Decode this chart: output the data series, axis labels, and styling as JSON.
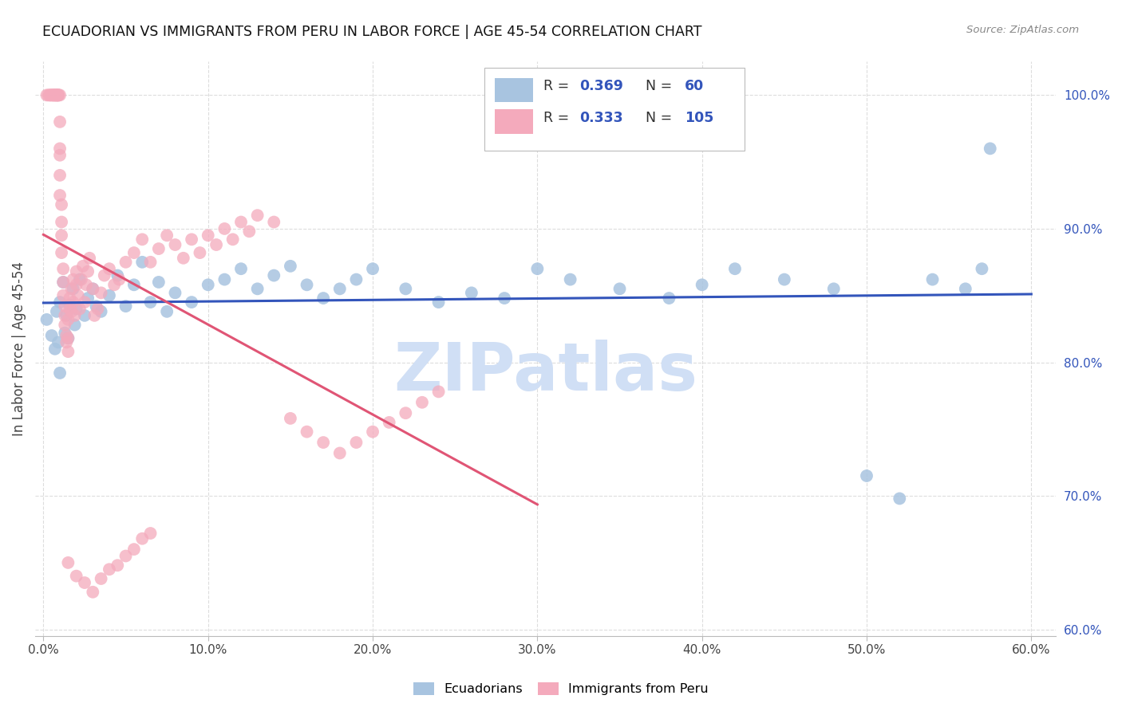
{
  "title": "ECUADORIAN VS IMMIGRANTS FROM PERU IN LABOR FORCE | AGE 45-54 CORRELATION CHART",
  "source": "Source: ZipAtlas.com",
  "ylabel": "In Labor Force | Age 45-54",
  "blue_R": 0.369,
  "blue_N": 60,
  "pink_R": 0.333,
  "pink_N": 105,
  "blue_color": "#A8C4E0",
  "pink_color": "#F4AABC",
  "blue_line_color": "#3355BB",
  "pink_line_color": "#E05575",
  "blue_label_color": "#3355BB",
  "watermark_text": "ZIPatlas",
  "watermark_color": "#D0DFF5",
  "xlim": [
    0.0,
    0.6
  ],
  "ylim": [
    0.595,
    1.025
  ],
  "x_ticks": [
    0.0,
    0.1,
    0.2,
    0.3,
    0.4,
    0.5,
    0.6
  ],
  "y_ticks": [
    0.6,
    0.7,
    0.8,
    0.9,
    1.0
  ],
  "blue_x": [
    0.002,
    0.005,
    0.007,
    0.008,
    0.009,
    0.01,
    0.01,
    0.012,
    0.013,
    0.014,
    0.015,
    0.016,
    0.018,
    0.019,
    0.02,
    0.022,
    0.025,
    0.027,
    0.03,
    0.032,
    0.035,
    0.04,
    0.045,
    0.05,
    0.055,
    0.06,
    0.065,
    0.07,
    0.075,
    0.08,
    0.09,
    0.1,
    0.11,
    0.12,
    0.13,
    0.14,
    0.15,
    0.16,
    0.17,
    0.18,
    0.19,
    0.2,
    0.22,
    0.24,
    0.26,
    0.28,
    0.3,
    0.32,
    0.35,
    0.38,
    0.4,
    0.42,
    0.45,
    0.48,
    0.5,
    0.52,
    0.54,
    0.56,
    0.57,
    0.575
  ],
  "blue_y": [
    0.832,
    0.82,
    0.81,
    0.838,
    0.815,
    0.792,
    0.845,
    0.86,
    0.822,
    0.835,
    0.818,
    0.843,
    0.855,
    0.828,
    0.84,
    0.862,
    0.835,
    0.848,
    0.855,
    0.842,
    0.838,
    0.85,
    0.865,
    0.842,
    0.858,
    0.875,
    0.845,
    0.86,
    0.838,
    0.852,
    0.845,
    0.858,
    0.862,
    0.87,
    0.855,
    0.865,
    0.872,
    0.858,
    0.848,
    0.855,
    0.862,
    0.87,
    0.855,
    0.845,
    0.852,
    0.848,
    0.87,
    0.862,
    0.855,
    0.848,
    0.858,
    0.87,
    0.862,
    0.855,
    0.715,
    0.698,
    0.862,
    0.855,
    0.87,
    0.96
  ],
  "pink_x": [
    0.002,
    0.003,
    0.004,
    0.004,
    0.005,
    0.005,
    0.006,
    0.006,
    0.006,
    0.007,
    0.007,
    0.007,
    0.008,
    0.008,
    0.008,
    0.008,
    0.009,
    0.009,
    0.009,
    0.009,
    0.01,
    0.01,
    0.01,
    0.01,
    0.01,
    0.01,
    0.011,
    0.011,
    0.011,
    0.011,
    0.012,
    0.012,
    0.012,
    0.013,
    0.013,
    0.013,
    0.014,
    0.014,
    0.015,
    0.015,
    0.015,
    0.016,
    0.016,
    0.017,
    0.017,
    0.018,
    0.018,
    0.019,
    0.02,
    0.02,
    0.021,
    0.022,
    0.023,
    0.024,
    0.025,
    0.026,
    0.027,
    0.028,
    0.03,
    0.031,
    0.033,
    0.035,
    0.037,
    0.04,
    0.043,
    0.046,
    0.05,
    0.055,
    0.06,
    0.065,
    0.07,
    0.075,
    0.08,
    0.085,
    0.09,
    0.095,
    0.1,
    0.105,
    0.11,
    0.115,
    0.12,
    0.125,
    0.13,
    0.14,
    0.15,
    0.16,
    0.17,
    0.18,
    0.19,
    0.2,
    0.21,
    0.22,
    0.23,
    0.24,
    0.015,
    0.02,
    0.025,
    0.03,
    0.035,
    0.04,
    0.045,
    0.05,
    0.055,
    0.06,
    0.065
  ],
  "pink_y": [
    1.0,
    1.0,
    1.0,
    1.0,
    1.0,
    1.0,
    1.0,
    1.0,
    1.0,
    1.0,
    1.0,
    1.0,
    1.0,
    1.0,
    1.0,
    1.0,
    1.0,
    1.0,
    1.0,
    1.0,
    1.0,
    0.98,
    0.96,
    0.955,
    0.94,
    0.925,
    0.918,
    0.905,
    0.895,
    0.882,
    0.87,
    0.86,
    0.85,
    0.842,
    0.835,
    0.828,
    0.82,
    0.815,
    0.808,
    0.832,
    0.818,
    0.84,
    0.848,
    0.838,
    0.855,
    0.845,
    0.862,
    0.835,
    0.868,
    0.858,
    0.85,
    0.84,
    0.862,
    0.872,
    0.845,
    0.858,
    0.868,
    0.878,
    0.855,
    0.835,
    0.84,
    0.852,
    0.865,
    0.87,
    0.858,
    0.862,
    0.875,
    0.882,
    0.892,
    0.875,
    0.885,
    0.895,
    0.888,
    0.878,
    0.892,
    0.882,
    0.895,
    0.888,
    0.9,
    0.892,
    0.905,
    0.898,
    0.91,
    0.905,
    0.758,
    0.748,
    0.74,
    0.732,
    0.74,
    0.748,
    0.755,
    0.762,
    0.77,
    0.778,
    0.65,
    0.64,
    0.635,
    0.628,
    0.638,
    0.645,
    0.648,
    0.655,
    0.66,
    0.668,
    0.672
  ]
}
